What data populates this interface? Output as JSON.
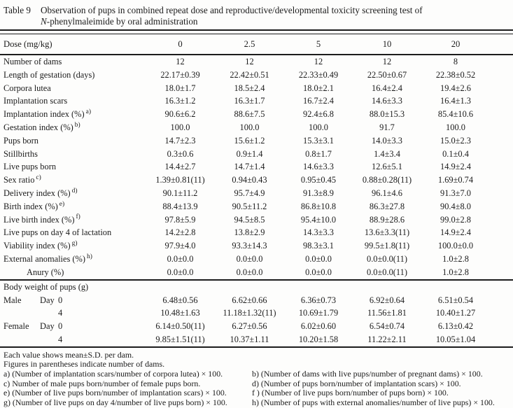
{
  "colors": {
    "ink": "#1b1b1b",
    "background": "#fdfdfc"
  },
  "title": {
    "label": "Table 9",
    "line1": "Observation of pups in combined repeat dose and reproductive/developmental toxicity screening test of",
    "line2_italic": "N",
    "line2_rest": "-phenylmaleimide by oral administration"
  },
  "table": {
    "dose_label": "Dose (mg/kg)",
    "dose_values": [
      "0",
      "2.5",
      "5",
      "10",
      "20"
    ],
    "rows": [
      {
        "label": "Number of dams",
        "values": [
          "12",
          "12",
          "12",
          "12",
          "8"
        ]
      },
      {
        "label": "Length of gestation (days)",
        "values": [
          "22.17±0.39",
          "22.42±0.51",
          "22.33±0.49",
          "22.50±0.67",
          "22.38±0.52"
        ]
      },
      {
        "label": "Corpora lutea",
        "values": [
          "18.0±1.7",
          "18.5±2.4",
          "18.0±2.1",
          "16.4±2.4",
          "19.4±2.6"
        ]
      },
      {
        "label": "Implantation scars",
        "values": [
          "16.3±1.2",
          "16.3±1.7",
          "16.7±2.4",
          "14.6±3.3",
          "16.4±1.3"
        ]
      },
      {
        "label": "Implantation index (%)",
        "sup": "a)",
        "values": [
          "90.6±6.2",
          "88.6±7.5",
          "92.4±6.8",
          "88.0±15.3",
          "85.4±10.6"
        ]
      },
      {
        "label": "Gestation index (%)",
        "sup": "b)",
        "values": [
          "100.0",
          "100.0",
          "100.0",
          "91.7",
          "100.0"
        ]
      },
      {
        "label": "Pups born",
        "values": [
          "14.7±2.3",
          "15.6±1.2",
          "15.3±3.1",
          "14.0±3.3",
          "15.0±2.3"
        ]
      },
      {
        "label": "Stillbirths",
        "values": [
          "0.3±0.6",
          "0.9±1.4",
          "0.8±1.7",
          "1.4±3.4",
          "0.1±0.4"
        ]
      },
      {
        "label": "Live pups born",
        "values": [
          "14.4±2.7",
          "14.7±1.4",
          "14.6±3.3",
          "12.6±5.1",
          "14.9±2.4"
        ]
      },
      {
        "label": "Sex ratio",
        "sup": "c)",
        "values": [
          "1.39±0.81(11)",
          "0.94±0.43",
          "0.95±0.45",
          "0.88±0.28(11)",
          "1.69±0.74"
        ]
      },
      {
        "label": "Delivery index (%)",
        "sup": "d)",
        "values": [
          "90.1±11.2",
          "95.7±4.9",
          "91.3±8.9",
          "96.1±4.6",
          "91.3±7.0"
        ]
      },
      {
        "label": "Birth index (%)",
        "sup": "e)",
        "values": [
          "88.4±13.9",
          "90.5±11.2",
          "86.8±10.8",
          "86.3±27.8",
          "90.4±8.0"
        ]
      },
      {
        "label": "Live birth index (%)",
        "sup": "f)",
        "values": [
          "97.8±5.9",
          "94.5±8.5",
          "95.4±10.0",
          "88.9±28.6",
          "99.0±2.8"
        ]
      },
      {
        "label": "Live pups on day 4 of lactation",
        "values": [
          "14.2±2.8",
          "13.8±2.9",
          "14.3±3.3",
          "13.6±3.3(11)",
          "14.9±2.4"
        ]
      },
      {
        "label": "Viability index (%)",
        "sup": "g)",
        "values": [
          "97.9±4.0",
          "93.3±14.3",
          "98.3±3.1",
          "99.5±1.8(11)",
          "100.0±0.0"
        ]
      },
      {
        "label": "External anomalies (%)",
        "sup": "h)",
        "values": [
          "0.0±0.0",
          "0.0±0.0",
          "0.0±0.0",
          "0.0±0.0(11)",
          "1.0±2.8"
        ]
      },
      {
        "label": "Anury (%)",
        "indent": true,
        "values": [
          "0.0±0.0",
          "0.0±0.0",
          "0.0±0.0",
          "0.0±0.0(11)",
          "1.0±2.8"
        ]
      }
    ],
    "body_weight_section": {
      "header": "Body weight of pups (g)",
      "rows": [
        {
          "sex": "Male",
          "day_word": "Day",
          "day": "0",
          "values": [
            "6.48±0.56",
            "6.62±0.66",
            "6.36±0.73",
            "6.92±0.64",
            "6.51±0.54"
          ]
        },
        {
          "sex": "",
          "day_word": "",
          "day": "4",
          "values": [
            "10.48±1.63",
            "11.18±1.32(11)",
            "10.69±1.79",
            "11.56±1.81",
            "10.40±1.27"
          ]
        },
        {
          "sex": "Female",
          "day_word": "Day",
          "day": "0",
          "values": [
            "6.14±0.50(11)",
            "6.27±0.56",
            "6.02±0.60",
            "6.54±0.74",
            "6.13±0.42"
          ]
        },
        {
          "sex": "",
          "day_word": "",
          "day": "4",
          "values": [
            "9.85±1.51(11)",
            "10.37±1.11",
            "10.20±1.58",
            "11.22±2.11",
            "10.05±1.04"
          ]
        }
      ]
    }
  },
  "footnotes": {
    "line1": "Each value shows mean±S.D. per dam.",
    "line2": "Figures in parentheses indicate number of dams.",
    "pairs": [
      [
        "a) (Number of implantation scars/number of corpora lutea) × 100.",
        "b) (Number of dams with live pups/number of pregnant dams) × 100."
      ],
      [
        "c) Number of male pups born/number of female pups born.",
        "d) (Number of pups born/number of implantation scars) × 100."
      ],
      [
        "e) (Number of live pups born/number of implantation scars) × 100.",
        "f ) (Number of live pups born/number of pups born) × 100."
      ],
      [
        "g) (Number of live pups on day 4/number of live pups born) × 100.",
        "h) (Number of pups with external anomalies/number of live pups) × 100."
      ]
    ]
  }
}
